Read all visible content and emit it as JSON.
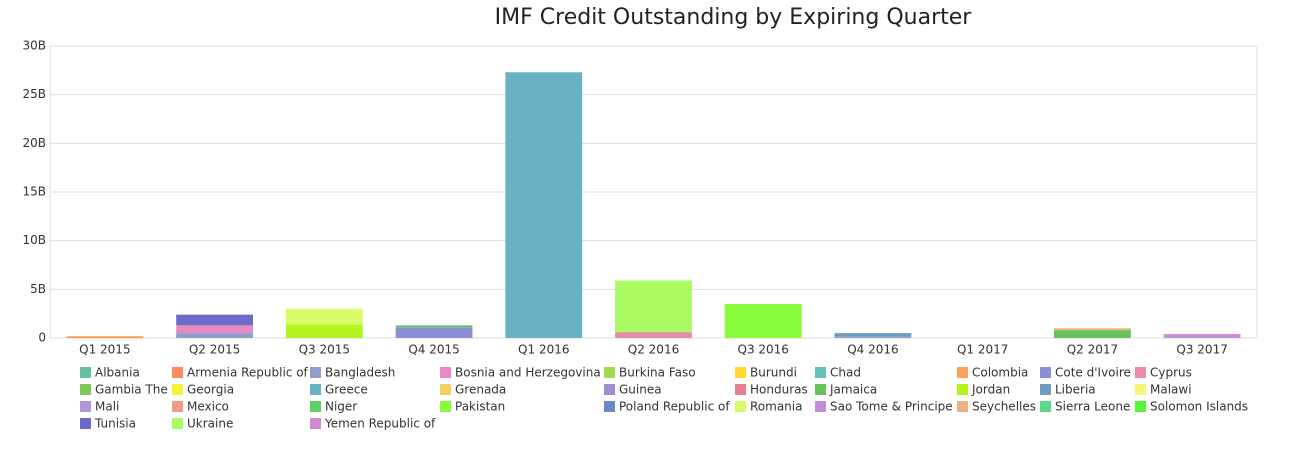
{
  "chart_data": {
    "type": "stacked_bar",
    "title": "IMF Credit Outstanding by Expiring Quarter",
    "categories": [
      "Q1 2015",
      "Q2 2015",
      "Q3 2015",
      "Q4 2015",
      "Q1 2016",
      "Q2 2016",
      "Q3 2016",
      "Q4 2016",
      "Q1 2017",
      "Q2 2017",
      "Q3 2017"
    ],
    "ylim": [
      0,
      30
    ],
    "yticks": [
      0,
      {
        "value": 5,
        "label": "5B"
      },
      {
        "value": 10,
        "label": "10B"
      },
      {
        "value": 15,
        "label": "15B"
      },
      {
        "value": 20,
        "label": "20B"
      },
      {
        "value": 25,
        "label": "25B"
      },
      {
        "value": 30,
        "label": "30B"
      }
    ],
    "grid": true,
    "series": [
      {
        "name": "Albania",
        "color": "#66c2a5",
        "values": [
          0,
          0,
          0,
          0,
          0,
          0,
          0,
          0,
          0,
          0,
          0
        ]
      },
      {
        "name": "Armenia Republic of",
        "color": "#fc8d62",
        "values": [
          0.15,
          0,
          0,
          0,
          0,
          0,
          0,
          0,
          0,
          0,
          0
        ]
      },
      {
        "name": "Bangladesh",
        "color": "#8da0cb",
        "values": [
          0,
          0.5,
          0,
          0,
          0,
          0,
          0,
          0.2,
          0,
          0,
          0
        ]
      },
      {
        "name": "Bosnia and Herzegovina",
        "color": "#e78ac3",
        "values": [
          0,
          0.8,
          0,
          0,
          0,
          0,
          0,
          0,
          0,
          0,
          0
        ]
      },
      {
        "name": "Burkina Faso",
        "color": "#a6d854",
        "values": [
          0,
          0,
          0,
          0,
          0,
          0,
          0,
          0,
          0,
          0,
          0
        ]
      },
      {
        "name": "Burundi",
        "color": "#ffd92f",
        "values": [
          0.05,
          0,
          0,
          0,
          0,
          0,
          0,
          0,
          0,
          0,
          0
        ]
      },
      {
        "name": "Chad",
        "color": "#66c2b5",
        "values": [
          0,
          0,
          0,
          0,
          0,
          0,
          0,
          0,
          0,
          0,
          0
        ]
      },
      {
        "name": "Colombia",
        "color": "#f8a45c",
        "values": [
          0,
          0,
          0,
          0,
          0,
          0,
          0,
          0,
          0,
          0,
          0
        ]
      },
      {
        "name": "Cote d'Ivoire",
        "color": "#8b8fd6",
        "values": [
          0,
          0,
          0,
          1.1,
          0,
          0,
          0,
          0,
          0,
          0,
          0
        ]
      },
      {
        "name": "Cyprus",
        "color": "#e88aa8",
        "values": [
          0,
          0,
          0,
          0,
          0,
          0.6,
          0,
          0,
          0,
          0,
          0
        ]
      },
      {
        "name": "Gambia The",
        "color": "#7fc75a",
        "values": [
          0,
          0,
          0,
          0,
          0,
          0,
          0,
          0,
          0,
          0,
          0
        ]
      },
      {
        "name": "Georgia",
        "color": "#f5f03a",
        "values": [
          0,
          0,
          0,
          0,
          0,
          0,
          0,
          0,
          0,
          0,
          0
        ]
      },
      {
        "name": "Greece",
        "color": "#68b2c3",
        "values": [
          0,
          0,
          0,
          0,
          27.3,
          0,
          0,
          0,
          0,
          0,
          0
        ]
      },
      {
        "name": "Grenada",
        "color": "#f5cf63",
        "values": [
          0,
          0,
          0,
          0,
          0,
          0,
          0,
          0,
          0,
          0,
          0
        ]
      },
      {
        "name": "Guinea",
        "color": "#a28fd0",
        "values": [
          0,
          0,
          0,
          0,
          0,
          0,
          0,
          0,
          0,
          0,
          0
        ]
      },
      {
        "name": "Honduras",
        "color": "#e57f90",
        "values": [
          0,
          0,
          0,
          0,
          0,
          0,
          0,
          0,
          0,
          0,
          0
        ]
      },
      {
        "name": "Jamaica",
        "color": "#66c25a",
        "values": [
          0,
          0,
          0,
          0.2,
          0,
          0,
          0,
          0,
          0,
          0.8,
          0
        ]
      },
      {
        "name": "Jordan",
        "color": "#b5f51f",
        "values": [
          0,
          0,
          1.4,
          0,
          0,
          0,
          0,
          0,
          0,
          0,
          0
        ]
      },
      {
        "name": "Liberia",
        "color": "#6e9cc0",
        "values": [
          0,
          0,
          0,
          0,
          0,
          0,
          0,
          0.3,
          0,
          0,
          0
        ]
      },
      {
        "name": "Malawi",
        "color": "#f6f57a",
        "values": [
          0,
          0,
          0,
          0,
          0,
          0,
          0,
          0,
          0,
          0,
          0
        ]
      },
      {
        "name": "Mali",
        "color": "#b495d6",
        "values": [
          0,
          0,
          0,
          0,
          0,
          0,
          0,
          0,
          0,
          0,
          0.1
        ]
      },
      {
        "name": "Mexico",
        "color": "#ee9a8c",
        "values": [
          0,
          0,
          0,
          0,
          0,
          0,
          0,
          0,
          0,
          0,
          0
        ]
      },
      {
        "name": "Niger",
        "color": "#5dd064",
        "values": [
          0,
          0,
          0,
          0,
          0,
          0,
          0,
          0,
          0,
          0,
          0
        ]
      },
      {
        "name": "Pakistan",
        "color": "#88fb3a",
        "values": [
          0,
          0,
          0,
          0,
          0,
          0,
          3.5,
          0,
          0,
          0,
          0
        ]
      },
      {
        "name": "Poland Republic of",
        "color": "#6a86c6",
        "values": [
          0,
          0,
          0,
          0,
          0,
          0,
          0,
          0,
          0,
          0,
          0
        ]
      },
      {
        "name": "Romania",
        "color": "#d9fb6a",
        "values": [
          0,
          0,
          1.6,
          0,
          0,
          0,
          0,
          0,
          0,
          0,
          0
        ]
      },
      {
        "name": "Sao Tome & Principe",
        "color": "#c18fd6",
        "values": [
          0,
          0,
          0,
          0,
          0,
          0,
          0,
          0,
          0,
          0,
          0
        ]
      },
      {
        "name": "Seychelles",
        "color": "#edb083",
        "values": [
          0,
          0,
          0,
          0,
          0,
          0,
          0,
          0,
          0,
          0.2,
          0
        ]
      },
      {
        "name": "Sierra Leone",
        "color": "#5dd88a",
        "values": [
          0,
          0,
          0,
          0,
          0,
          0,
          0,
          0,
          0,
          0,
          0
        ]
      },
      {
        "name": "Solomon Islands",
        "color": "#56f53a",
        "values": [
          0,
          0,
          0,
          0,
          0,
          0,
          0,
          0,
          0,
          0,
          0
        ]
      },
      {
        "name": "Tunisia",
        "color": "#6c6cc8",
        "values": [
          0,
          1.1,
          0,
          0,
          0,
          0,
          0,
          0,
          0,
          0,
          0
        ]
      },
      {
        "name": "Ukraine",
        "color": "#aafb63",
        "values": [
          0,
          0,
          0,
          0,
          0,
          5.3,
          0,
          0,
          0,
          0,
          0
        ]
      },
      {
        "name": "Yemen Republic of",
        "color": "#d08ad0",
        "values": [
          0,
          0,
          0,
          0,
          0,
          0,
          0,
          0,
          0,
          0,
          0.3
        ]
      }
    ]
  }
}
